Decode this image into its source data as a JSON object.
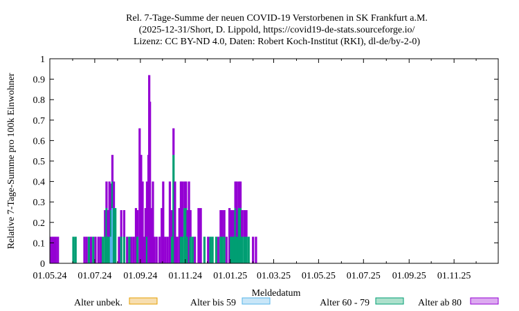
{
  "chart_data": {
    "type": "bar",
    "stacked": true,
    "title": [
      "Rel. 7-Tage-Summe der neuen COVID-19 Verstorbenen in SK Frankfurt a.M.",
      "(2025-12-31/Short, D. Lippold, https://covid19-de-stats.sourceforge.io/",
      "Lizenz: CC BY-ND 4.0, Daten: Robert Koch-Institut (RKI), dl-de/by-2-0)"
    ],
    "xlabel": "Meldedatum",
    "ylabel": "Relative 7-Tage-Summe pro 100k Einwohner",
    "ylim": [
      0,
      1
    ],
    "xlim": [
      "2024-05-01",
      "2025-12-31"
    ],
    "yticks": [
      "0",
      "0.1",
      "0.2",
      "0.3",
      "0.4",
      "0.5",
      "0.6",
      "0.7",
      "0.8",
      "0.9",
      "1"
    ],
    "xticks": [
      "01.05.24",
      "01.07.24",
      "01.09.24",
      "01.11.24",
      "01.01.25",
      "01.03.25",
      "01.05.25",
      "01.07.25",
      "01.09.25",
      "01.11.25"
    ],
    "grid": false,
    "legend_position": "bottom",
    "series": [
      {
        "name": "Alter unbek.",
        "color": "#e69f00",
        "fill": "#f7deb0"
      },
      {
        "name": "Alter bis 59",
        "color": "#56b4e9",
        "fill": "#c8e6f8"
      },
      {
        "name": "Alter 60 - 79",
        "color": "#009e73",
        "fill": "#ade0cc"
      },
      {
        "name": "Alter ab 80",
        "color": "#9400d3",
        "fill": "#dcaaf0"
      }
    ],
    "data": [
      {
        "x": "2024-05-03",
        "values": [
          0,
          0,
          0,
          0.13
        ]
      },
      {
        "x": "2024-05-05",
        "values": [
          0,
          0,
          0,
          0.13
        ]
      },
      {
        "x": "2024-05-07",
        "values": [
          0,
          0,
          0,
          0.13
        ]
      },
      {
        "x": "2024-05-09",
        "values": [
          0,
          0,
          0,
          0.13
        ]
      },
      {
        "x": "2024-05-12",
        "values": [
          0,
          0,
          0,
          0.13
        ]
      },
      {
        "x": "2024-06-02",
        "values": [
          0,
          0,
          0.13,
          0
        ]
      },
      {
        "x": "2024-06-05",
        "values": [
          0,
          0,
          0.13,
          0
        ]
      },
      {
        "x": "2024-06-17",
        "values": [
          0,
          0,
          0,
          0.13
        ]
      },
      {
        "x": "2024-06-20",
        "values": [
          0,
          0,
          0,
          0.13
        ]
      },
      {
        "x": "2024-06-23",
        "values": [
          0,
          0,
          0.13,
          0
        ]
      },
      {
        "x": "2024-06-26",
        "values": [
          0,
          0,
          0,
          0.13
        ]
      },
      {
        "x": "2024-06-29",
        "values": [
          0,
          0,
          0.13,
          0
        ]
      },
      {
        "x": "2024-07-02",
        "values": [
          0,
          0,
          0,
          0.13
        ]
      },
      {
        "x": "2024-07-06",
        "values": [
          0,
          0,
          0,
          0.13
        ]
      },
      {
        "x": "2024-07-09",
        "values": [
          0,
          0,
          0,
          0.13
        ]
      },
      {
        "x": "2024-07-12",
        "values": [
          0,
          0,
          0.13,
          0
        ]
      },
      {
        "x": "2024-07-15",
        "values": [
          0,
          0,
          0.13,
          0.13
        ]
      },
      {
        "x": "2024-07-17",
        "values": [
          0,
          0,
          0.27,
          0.13
        ]
      },
      {
        "x": "2024-07-19",
        "values": [
          0,
          0,
          0.13,
          0.13
        ]
      },
      {
        "x": "2024-07-21",
        "values": [
          0,
          0,
          0.13,
          0.27
        ]
      },
      {
        "x": "2024-07-23",
        "values": [
          0,
          0.13,
          0.13,
          0.13
        ]
      },
      {
        "x": "2024-07-25",
        "values": [
          0,
          0.27,
          0.13,
          0.13
        ]
      },
      {
        "x": "2024-07-27",
        "values": [
          0,
          0,
          0.27,
          0.13
        ]
      },
      {
        "x": "2024-07-29",
        "values": [
          0,
          0,
          0.27,
          0
        ]
      },
      {
        "x": "2024-08-03",
        "values": [
          0,
          0,
          0,
          0.13
        ]
      },
      {
        "x": "2024-08-06",
        "values": [
          0,
          0,
          0.13,
          0.13
        ]
      },
      {
        "x": "2024-08-10",
        "values": [
          0,
          0,
          0.13,
          0.13
        ]
      },
      {
        "x": "2024-08-14",
        "values": [
          0,
          0,
          0,
          0.13
        ]
      },
      {
        "x": "2024-08-17",
        "values": [
          0,
          0,
          0.13,
          0
        ]
      },
      {
        "x": "2024-08-20",
        "values": [
          0,
          0,
          0,
          0.13
        ]
      },
      {
        "x": "2024-08-23",
        "values": [
          0,
          0,
          0,
          0.13
        ]
      },
      {
        "x": "2024-08-26",
        "values": [
          0,
          0,
          0,
          0.27
        ]
      },
      {
        "x": "2024-08-28",
        "values": [
          0,
          0,
          0.13,
          0.13
        ]
      },
      {
        "x": "2024-08-31",
        "values": [
          0,
          0,
          0,
          0.66
        ]
      },
      {
        "x": "2024-09-02",
        "values": [
          0,
          0,
          0,
          0.53
        ]
      },
      {
        "x": "2024-09-04",
        "values": [
          0,
          0,
          0,
          0.4
        ]
      },
      {
        "x": "2024-09-06",
        "values": [
          0,
          0,
          0,
          0.13
        ]
      },
      {
        "x": "2024-09-08",
        "values": [
          0,
          0,
          0,
          0.27
        ]
      },
      {
        "x": "2024-09-10",
        "values": [
          0,
          0,
          0.13,
          0.27
        ]
      },
      {
        "x": "2024-09-12",
        "values": [
          0,
          0,
          0,
          0.53
        ]
      },
      {
        "x": "2024-09-13",
        "values": [
          0,
          0,
          0,
          0.92
        ]
      },
      {
        "x": "2024-09-14",
        "values": [
          0,
          0,
          0,
          0.79
        ]
      },
      {
        "x": "2024-09-16",
        "values": [
          0,
          0,
          0,
          0.27
        ]
      },
      {
        "x": "2024-09-18",
        "values": [
          0,
          0,
          0,
          0.4
        ]
      },
      {
        "x": "2024-09-20",
        "values": [
          0,
          0,
          0,
          0.13
        ]
      },
      {
        "x": "2024-09-23",
        "values": [
          0,
          0,
          0,
          0.13
        ]
      },
      {
        "x": "2024-09-27",
        "values": [
          0,
          0,
          0,
          0.13
        ]
      },
      {
        "x": "2024-09-30",
        "values": [
          0,
          0,
          0,
          0.27
        ]
      },
      {
        "x": "2024-10-02",
        "values": [
          0,
          0,
          0,
          0.4
        ]
      },
      {
        "x": "2024-10-05",
        "values": [
          0,
          0,
          0,
          0.13
        ]
      },
      {
        "x": "2024-10-08",
        "values": [
          0,
          0,
          0,
          0.13
        ]
      },
      {
        "x": "2024-10-11",
        "values": [
          0,
          0,
          0,
          0.4
        ]
      },
      {
        "x": "2024-10-14",
        "values": [
          0,
          0,
          0.13,
          0.13
        ]
      },
      {
        "x": "2024-10-16",
        "values": [
          0,
          0,
          0.53,
          0.13
        ]
      },
      {
        "x": "2024-10-18",
        "values": [
          0,
          0,
          0,
          0.4
        ]
      },
      {
        "x": "2024-10-21",
        "values": [
          0,
          0,
          0,
          0.13
        ]
      },
      {
        "x": "2024-10-24",
        "values": [
          0,
          0,
          0,
          0.27
        ]
      },
      {
        "x": "2024-10-26",
        "values": [
          0,
          0,
          0.13,
          0.27
        ]
      },
      {
        "x": "2024-10-28",
        "values": [
          0,
          0,
          0.13,
          0.27
        ]
      },
      {
        "x": "2024-10-31",
        "values": [
          0,
          0,
          0.27,
          0.13
        ]
      },
      {
        "x": "2024-11-02",
        "values": [
          0,
          0,
          0.27,
          0.13
        ]
      },
      {
        "x": "2024-11-04",
        "values": [
          0,
          0,
          0.13,
          0.13
        ]
      },
      {
        "x": "2024-11-06",
        "values": [
          0,
          0,
          0,
          0.4
        ]
      },
      {
        "x": "2024-11-08",
        "values": [
          0,
          0,
          0.13,
          0.13
        ]
      },
      {
        "x": "2024-11-11",
        "values": [
          0,
          0,
          0.13,
          0
        ]
      },
      {
        "x": "2024-11-14",
        "values": [
          0,
          0,
          0,
          0.13
        ]
      },
      {
        "x": "2024-11-19",
        "values": [
          0,
          0,
          0,
          0.27
        ]
      },
      {
        "x": "2024-11-22",
        "values": [
          0,
          0,
          0,
          0.27
        ]
      },
      {
        "x": "2024-11-27",
        "values": [
          0,
          0,
          0.13,
          0
        ]
      },
      {
        "x": "2024-12-02",
        "values": [
          0,
          0,
          0,
          0.13
        ]
      },
      {
        "x": "2024-12-05",
        "values": [
          0,
          0,
          0.13,
          0
        ]
      },
      {
        "x": "2024-12-08",
        "values": [
          0,
          0,
          0.13,
          0
        ]
      },
      {
        "x": "2024-12-13",
        "values": [
          0,
          0,
          0.13,
          0
        ]
      },
      {
        "x": "2024-12-16",
        "values": [
          0,
          0,
          0,
          0.13
        ]
      },
      {
        "x": "2024-12-19",
        "values": [
          0,
          0,
          0.13,
          0.13
        ]
      },
      {
        "x": "2024-12-21",
        "values": [
          0,
          0,
          0.13,
          0.13
        ]
      },
      {
        "x": "2024-12-24",
        "values": [
          0,
          0,
          0.13,
          0.13
        ]
      },
      {
        "x": "2024-12-27",
        "values": [
          0,
          0,
          0,
          0.13
        ]
      },
      {
        "x": "2024-12-31",
        "values": [
          0,
          0,
          0,
          0.27
        ]
      },
      {
        "x": "2025-01-02",
        "values": [
          0,
          0,
          0.13,
          0.13
        ]
      },
      {
        "x": "2025-01-04",
        "values": [
          0,
          0,
          0.13,
          0.13
        ]
      },
      {
        "x": "2025-01-06",
        "values": [
          0,
          0,
          0.13,
          0.13
        ]
      },
      {
        "x": "2025-01-08",
        "values": [
          0,
          0,
          0.27,
          0.13
        ]
      },
      {
        "x": "2025-01-10",
        "values": [
          0,
          0,
          0.13,
          0.27
        ]
      },
      {
        "x": "2025-01-11",
        "values": [
          0,
          0,
          0.13,
          0.13
        ]
      },
      {
        "x": "2025-01-13",
        "values": [
          0,
          0,
          0.27,
          0.13
        ]
      },
      {
        "x": "2025-01-15",
        "values": [
          0,
          0,
          0.27,
          0.13
        ]
      },
      {
        "x": "2025-01-17",
        "values": [
          0,
          0,
          0.13,
          0.13
        ]
      },
      {
        "x": "2025-01-20",
        "values": [
          0,
          0,
          0.13,
          0.13
        ]
      },
      {
        "x": "2025-01-23",
        "values": [
          0,
          0,
          0.13,
          0.13
        ]
      },
      {
        "x": "2025-01-26",
        "values": [
          0,
          0,
          0.13,
          0
        ]
      },
      {
        "x": "2025-02-01",
        "values": [
          0,
          0,
          0,
          0.13
        ]
      },
      {
        "x": "2025-02-05",
        "values": [
          0,
          0,
          0,
          0.13
        ]
      }
    ]
  }
}
